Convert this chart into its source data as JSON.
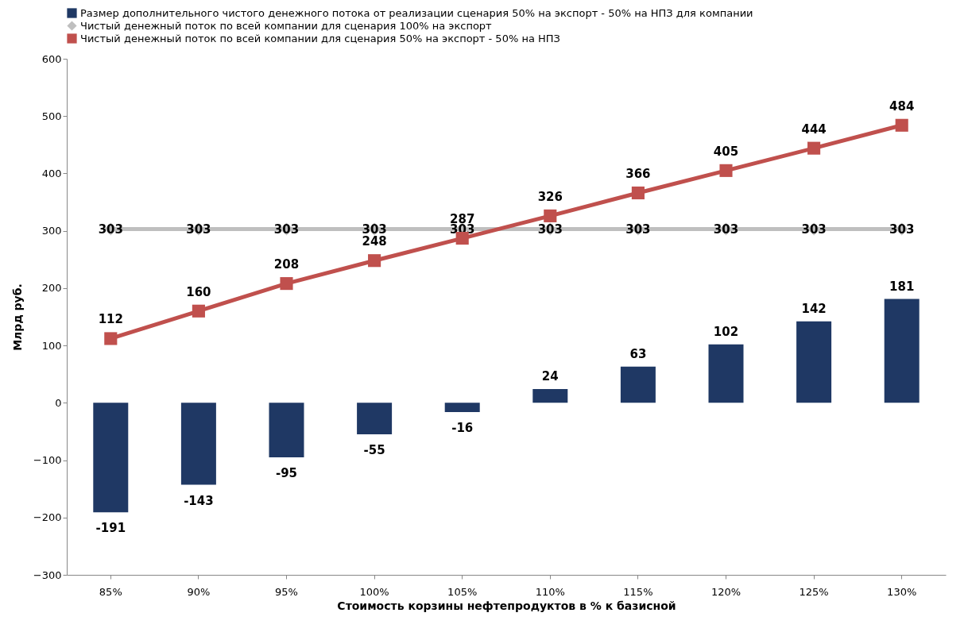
{
  "chart_data": {
    "type": "bar",
    "categories": [
      "85%",
      "90%",
      "95%",
      "100%",
      "105%",
      "110%",
      "115%",
      "120%",
      "125%",
      "130%"
    ],
    "series": [
      {
        "name": "Размер дополнительного чистого денежного потока от реализации сценария 50% на экспорт - 50% на НПЗ для компании",
        "color": "#1f3864",
        "values": [
          -191,
          -143,
          -95,
          -55,
          -16,
          24,
          63,
          102,
          142,
          181
        ]
      },
      {
        "type": "line",
        "marker": "diamond",
        "name": "Чистый денежный поток по всей компании для сценария 100% на экспорт",
        "color": "#bfbfbf",
        "values": [
          303,
          303,
          303,
          303,
          303,
          303,
          303,
          303,
          303,
          303
        ]
      },
      {
        "type": "line",
        "marker": "square",
        "name": "Чистый денежный поток по всей компании для сценария 50% на экспорт - 50% на НПЗ",
        "color": "#c0504d",
        "values": [
          112,
          160,
          208,
          248,
          287,
          326,
          366,
          405,
          444,
          484
        ]
      }
    ],
    "xlabel": "Стоимость корзины нефтепродуктов в % к базисной",
    "ylabel": "Млрд руб.",
    "ylim": [
      -300,
      600
    ],
    "yticks": [
      -300,
      -200,
      -100,
      0,
      100,
      200,
      300,
      400,
      500,
      600
    ],
    "grid": false,
    "legend": "top",
    "data_labels": true
  }
}
